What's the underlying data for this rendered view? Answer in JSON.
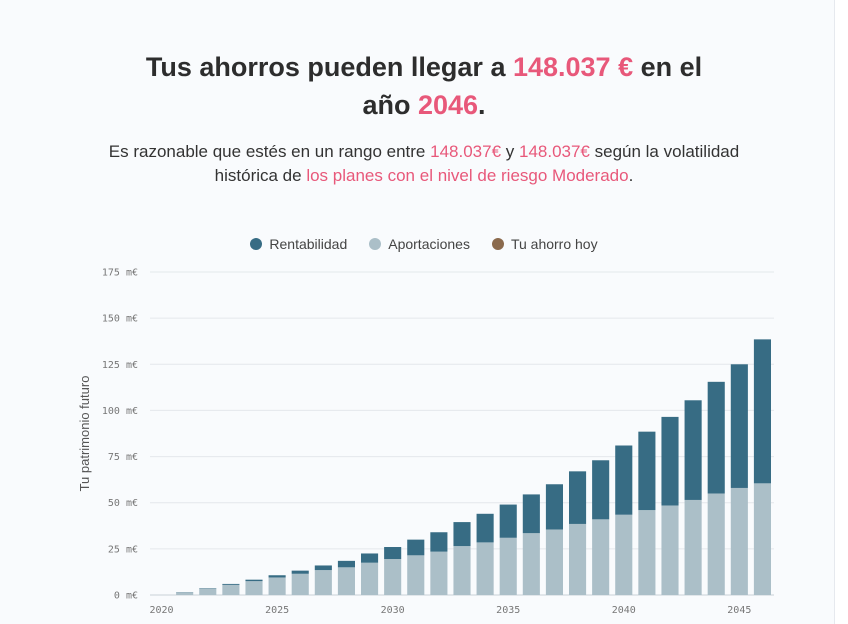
{
  "headline": {
    "part1": "Tus ahorros pueden llegar a ",
    "amount": "148.037 €",
    "part2": " en el",
    "part3": "año ",
    "year": "2046",
    "part4": "."
  },
  "subtitle": {
    "part1": "Es razonable que estés en un rango entre ",
    "low": "148.037€",
    "part2": " y ",
    "high": "148.037€",
    "part3": " según la volatilidad",
    "part4": "histórica de ",
    "link": "los planes con el nivel de riesgo Moderado",
    "part5": "."
  },
  "legend": [
    {
      "label": "Rentabilidad",
      "color": "#376c84"
    },
    {
      "label": "Aportaciones",
      "color": "#abbfc8"
    },
    {
      "label": "Tu ahorro hoy",
      "color": "#8b6a4d"
    }
  ],
  "chart_data": {
    "type": "bar",
    "stacked": true,
    "ylabel": "Tu patrimonio futuro",
    "ylim": [
      0,
      175
    ],
    "yticks": [
      0,
      25,
      50,
      75,
      100,
      125,
      150,
      175
    ],
    "ytick_labels": [
      "0 m€",
      "25 m€",
      "50 m€",
      "75 m€",
      "100 m€",
      "125 m€",
      "150 m€",
      "175 m€"
    ],
    "xticks": [
      2020,
      2025,
      2030,
      2035,
      2040,
      2045
    ],
    "categories": [
      2020,
      2021,
      2022,
      2023,
      2024,
      2025,
      2026,
      2027,
      2028,
      2029,
      2030,
      2031,
      2032,
      2033,
      2034,
      2035,
      2036,
      2037,
      2038,
      2039,
      2040,
      2041,
      2042,
      2043,
      2044,
      2045,
      2046
    ],
    "series": [
      {
        "name": "Aportaciones",
        "color": "#abbfc8",
        "values": [
          0,
          1.5,
          3.5,
          5.5,
          7.5,
          9.5,
          11.5,
          13.5,
          15,
          17.5,
          19.5,
          21.5,
          23.5,
          26.5,
          28.5,
          31,
          33.5,
          35.5,
          38.5,
          41,
          43.5,
          46,
          48.5,
          51.5,
          55,
          58,
          60.5
        ]
      },
      {
        "name": "Rentabilidad",
        "color": "#376c84",
        "values": [
          0,
          0.1,
          0.2,
          0.5,
          0.8,
          1.2,
          1.7,
          2.5,
          3.5,
          5,
          6.5,
          8.5,
          10.5,
          13,
          15.5,
          18,
          21,
          24.5,
          28.5,
          32,
          37.5,
          42.5,
          48,
          54,
          60.5,
          67,
          78
        ]
      }
    ],
    "grid": true,
    "legend_position": "top-center"
  }
}
